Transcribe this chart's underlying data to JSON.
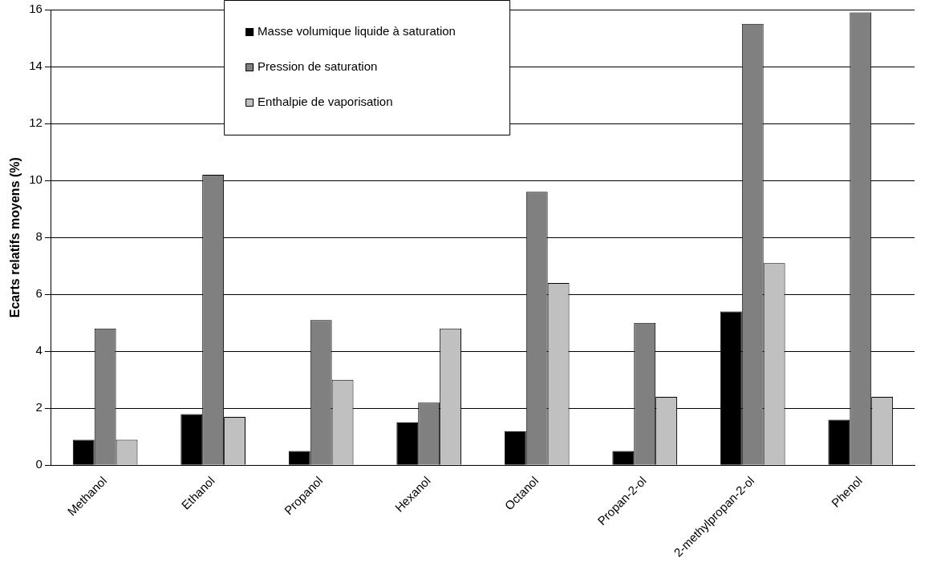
{
  "chart_data": {
    "type": "bar",
    "ylabel": "Ecarts relatifs moyens (%)",
    "categories": [
      "Methanol",
      "Ethanol",
      "Propanol",
      "Hexanol",
      "Octanol",
      "Propan-2-ol",
      "2-methylpropan-2-ol",
      "Phenol"
    ],
    "series": [
      {
        "name": "Masse volumique liquide à saturation",
        "color": "#000000",
        "values": [
          0.9,
          1.8,
          0.5,
          1.5,
          1.2,
          0.5,
          5.4,
          1.6
        ]
      },
      {
        "name": "Pression de saturation",
        "color": "#808080",
        "values": [
          4.8,
          10.2,
          5.1,
          2.2,
          9.6,
          5.0,
          15.5,
          15.9
        ]
      },
      {
        "name": "Enthalpie de vaporisation",
        "color": "#c0c0c0",
        "values": [
          0.9,
          1.7,
          3.0,
          4.8,
          6.4,
          2.4,
          7.1,
          2.4
        ]
      }
    ],
    "ylim": [
      0,
      16
    ],
    "yticks": [
      0,
      2,
      4,
      6,
      8,
      10,
      12,
      14,
      16
    ],
    "grid": "y",
    "legend": "top"
  }
}
